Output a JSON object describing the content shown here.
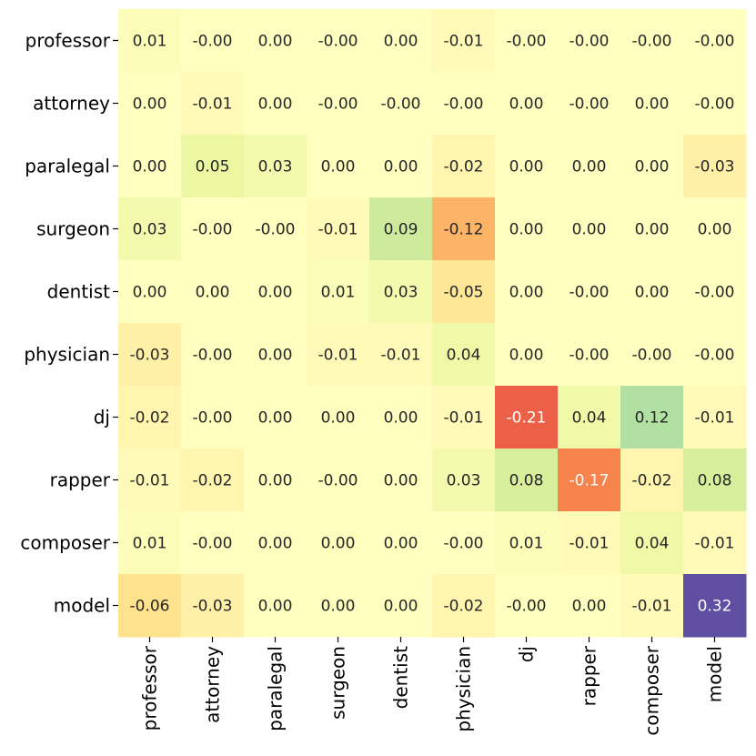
{
  "chart_data": {
    "type": "heatmap",
    "rows": [
      "professor",
      "attorney",
      "paralegal",
      "surgeon",
      "dentist",
      "physician",
      "dj",
      "rapper",
      "composer",
      "model"
    ],
    "columns": [
      "professor",
      "attorney",
      "paralegal",
      "surgeon",
      "dentist",
      "physician",
      "dj",
      "rapper",
      "composer",
      "model"
    ],
    "values": [
      [
        0.01,
        -0.0,
        0.0,
        -0.0,
        0.0,
        -0.01,
        -0.0,
        -0.0,
        -0.0,
        -0.0
      ],
      [
        0.0,
        -0.01,
        0.0,
        -0.0,
        -0.0,
        -0.0,
        0.0,
        -0.0,
        0.0,
        -0.0
      ],
      [
        0.0,
        0.05,
        0.03,
        0.0,
        0.0,
        -0.02,
        0.0,
        0.0,
        0.0,
        -0.03
      ],
      [
        0.03,
        -0.0,
        -0.0,
        -0.01,
        0.09,
        -0.12,
        0.0,
        0.0,
        0.0,
        0.0
      ],
      [
        0.0,
        0.0,
        0.0,
        0.01,
        0.03,
        -0.05,
        0.0,
        -0.0,
        0.0,
        -0.0
      ],
      [
        -0.03,
        -0.0,
        0.0,
        -0.01,
        -0.01,
        0.04,
        0.0,
        -0.0,
        -0.0,
        -0.0
      ],
      [
        -0.02,
        -0.0,
        0.0,
        0.0,
        0.0,
        -0.01,
        -0.21,
        0.04,
        0.12,
        -0.01
      ],
      [
        -0.01,
        -0.02,
        0.0,
        -0.0,
        0.0,
        0.03,
        0.08,
        -0.17,
        -0.02,
        0.08
      ],
      [
        0.01,
        -0.0,
        0.0,
        0.0,
        0.0,
        -0.0,
        0.01,
        -0.01,
        0.04,
        -0.01
      ],
      [
        -0.06,
        -0.03,
        0.0,
        0.0,
        0.0,
        -0.02,
        -0.0,
        0.0,
        -0.01,
        0.32
      ]
    ],
    "labels": [
      [
        "0.01",
        "-0.00",
        "0.00",
        "-0.00",
        "0.00",
        "-0.01",
        "-0.00",
        "-0.00",
        "-0.00",
        "-0.00"
      ],
      [
        "0.00",
        "-0.01",
        "0.00",
        "-0.00",
        "-0.00",
        "-0.00",
        "0.00",
        "-0.00",
        "0.00",
        "-0.00"
      ],
      [
        "0.00",
        "0.05",
        "0.03",
        "0.00",
        "0.00",
        "-0.02",
        "0.00",
        "0.00",
        "0.00",
        "-0.03"
      ],
      [
        "0.03",
        "-0.00",
        "-0.00",
        "-0.01",
        "0.09",
        "-0.12",
        "0.00",
        "0.00",
        "0.00",
        "0.00"
      ],
      [
        "0.00",
        "0.00",
        "0.00",
        "0.01",
        "0.03",
        "-0.05",
        "0.00",
        "-0.00",
        "0.00",
        "-0.00"
      ],
      [
        "-0.03",
        "-0.00",
        "0.00",
        "-0.01",
        "-0.01",
        "0.04",
        "0.00",
        "-0.00",
        "-0.00",
        "-0.00"
      ],
      [
        "-0.02",
        "-0.00",
        "0.00",
        "0.00",
        "0.00",
        "-0.01",
        "-0.21",
        "0.04",
        "0.12",
        "-0.01"
      ],
      [
        "-0.01",
        "-0.02",
        "0.00",
        "-0.00",
        "0.00",
        "0.03",
        "0.08",
        "-0.17",
        "-0.02",
        "0.08"
      ],
      [
        "0.01",
        "-0.00",
        "0.00",
        "0.00",
        "0.00",
        "-0.00",
        "0.01",
        "-0.01",
        "0.04",
        "-0.01"
      ],
      [
        "-0.06",
        "-0.03",
        "0.00",
        "0.00",
        "0.00",
        "-0.02",
        "-0.00",
        "0.00",
        "-0.01",
        "0.32"
      ]
    ],
    "colormap": "Spectral",
    "value_range": [
      -0.32,
      0.32
    ],
    "colorbar": false,
    "grid": false
  }
}
